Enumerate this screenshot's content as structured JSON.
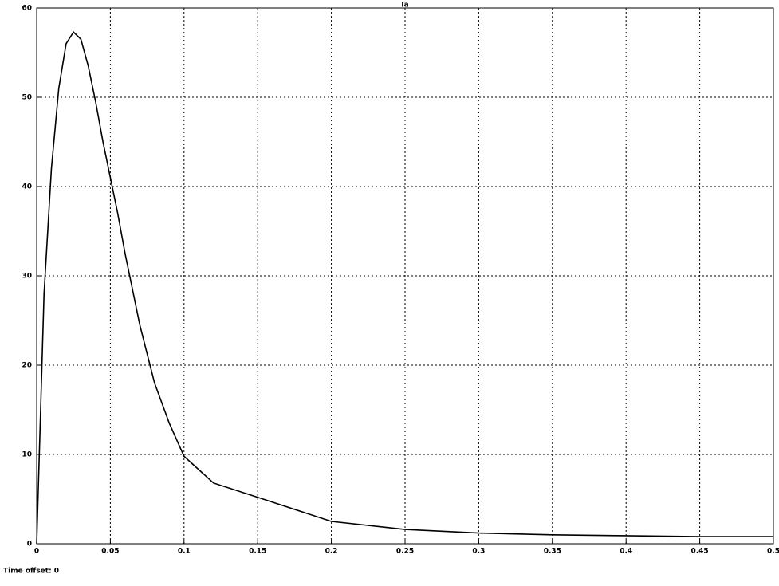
{
  "chart_data": {
    "type": "line",
    "title": "Ia",
    "footnote": "Time offset: 0",
    "x": [
      0,
      0.005,
      0.01,
      0.015,
      0.02,
      0.025,
      0.03,
      0.035,
      0.04,
      0.045,
      0.05,
      0.055,
      0.06,
      0.07,
      0.08,
      0.09,
      0.1,
      0.12,
      0.15,
      0.2,
      0.25,
      0.3,
      0.35,
      0.4,
      0.45,
      0.5
    ],
    "series": [
      {
        "color": "#000000",
        "values": [
          0,
          28,
          42,
          51,
          56,
          57.3,
          56.5,
          53.5,
          49.5,
          45,
          41,
          37,
          32.5,
          24.5,
          18,
          13.5,
          9.8,
          6.8,
          5.2,
          2.5,
          1.6,
          1.2,
          1.0,
          0.9,
          0.8,
          0.8
        ]
      }
    ],
    "xlim": [
      0,
      0.5
    ],
    "ylim": [
      0,
      60
    ],
    "xticks": [
      0,
      0.05,
      0.1,
      0.15,
      0.2,
      0.25,
      0.3,
      0.35,
      0.4,
      0.45,
      0.5
    ],
    "yticks": [
      0,
      10,
      20,
      30,
      40,
      50,
      60
    ],
    "grid": true
  }
}
